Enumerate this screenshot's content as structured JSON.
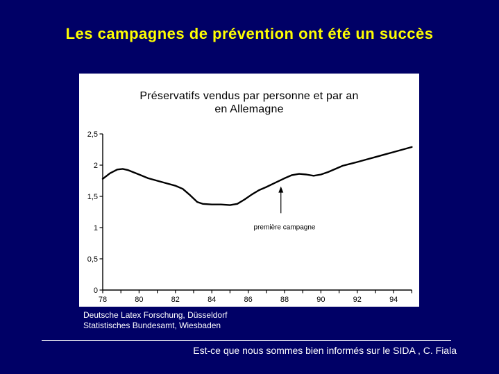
{
  "slide": {
    "title": "Les campagnes de prévention ont été un succès",
    "source_lines": [
      "Deutsche Latex Forschung, Düsseldorf",
      "Statistisches Bundesamt, Wiesbaden"
    ],
    "footer": "Est-ce que nous sommes bien informés sur le SIDA , C. Fiala"
  },
  "colors": {
    "background": "#000066",
    "title": "#ffff00",
    "chart_bg": "#ffffff",
    "chart_fg": "#000000",
    "light_text": "#ffffff"
  },
  "chart_data": {
    "type": "line",
    "title": "Préservatifs vendus par personne et par an en Allemagne",
    "title_lines": [
      "Préservatifs vendus par personne et par an",
      "en Allemagne"
    ],
    "xlabel": "",
    "ylabel": "",
    "xlim": [
      78,
      95
    ],
    "ylim": [
      0,
      2.5
    ],
    "grid": false,
    "legend": false,
    "x_tick_labels": [
      78,
      80,
      82,
      84,
      86,
      88,
      90,
      92,
      94
    ],
    "x_minor_tick_step": 1,
    "y_ticks": [
      0,
      0.5,
      1,
      1.5,
      2,
      2.5
    ],
    "y_tick_labels": [
      "0",
      "0,5",
      "1",
      "1,5",
      "2",
      "2,5"
    ],
    "annotation": {
      "text": "première campagne",
      "x_year": 87.8,
      "arrow_tip_value": 1.66,
      "arrow_tail_value": 1.23,
      "label_x_year": 88.0,
      "label_value": 0.97
    },
    "series": [
      {
        "name": "Préservatifs vendus par personne et par an",
        "points": [
          [
            78.0,
            1.78
          ],
          [
            78.4,
            1.87
          ],
          [
            78.8,
            1.93
          ],
          [
            79.1,
            1.94
          ],
          [
            79.4,
            1.92
          ],
          [
            80.0,
            1.85
          ],
          [
            80.5,
            1.79
          ],
          [
            81.0,
            1.75
          ],
          [
            81.5,
            1.71
          ],
          [
            82.0,
            1.67
          ],
          [
            82.4,
            1.62
          ],
          [
            82.8,
            1.52
          ],
          [
            83.2,
            1.41
          ],
          [
            83.5,
            1.38
          ],
          [
            84.0,
            1.37
          ],
          [
            84.5,
            1.37
          ],
          [
            85.0,
            1.36
          ],
          [
            85.4,
            1.38
          ],
          [
            85.8,
            1.45
          ],
          [
            86.2,
            1.53
          ],
          [
            86.6,
            1.6
          ],
          [
            87.0,
            1.65
          ],
          [
            87.5,
            1.72
          ],
          [
            88.0,
            1.79
          ],
          [
            88.4,
            1.84
          ],
          [
            88.8,
            1.86
          ],
          [
            89.2,
            1.85
          ],
          [
            89.6,
            1.83
          ],
          [
            90.0,
            1.85
          ],
          [
            90.4,
            1.89
          ],
          [
            90.8,
            1.94
          ],
          [
            91.2,
            1.99
          ],
          [
            91.6,
            2.02
          ],
          [
            92.0,
            2.05
          ],
          [
            92.5,
            2.09
          ],
          [
            93.0,
            2.13
          ],
          [
            93.5,
            2.17
          ],
          [
            94.0,
            2.21
          ],
          [
            94.5,
            2.25
          ],
          [
            95.0,
            2.29
          ]
        ]
      }
    ]
  }
}
